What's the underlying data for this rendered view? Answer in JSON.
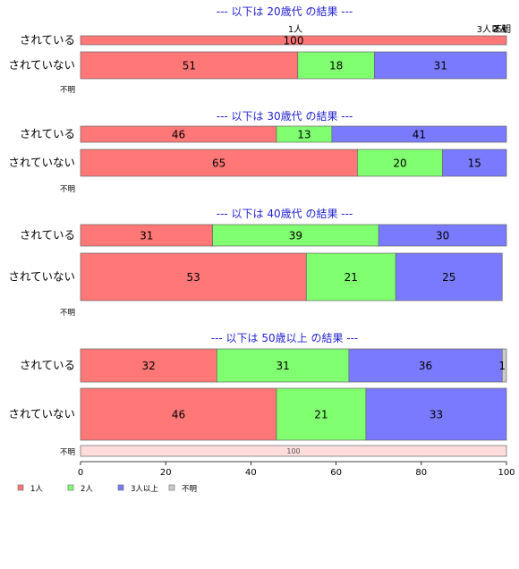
{
  "chart_data": {
    "type": "bar",
    "orientation": "horizontal",
    "stacked": true,
    "xlim": [
      0,
      100
    ],
    "xticks": [
      "0",
      "20",
      "40",
      "60",
      "80",
      "100"
    ],
    "legend_placement": "bottom-left",
    "colors": {
      "1人": "#ff7777",
      "2人": "#80ff70",
      "3人以上": "#7a7aff",
      "不明": "#cccccc",
      "不明_row": "#ffdddd"
    },
    "series_names": [
      "1人",
      "2人",
      "3人以上",
      "不明"
    ],
    "groups": [
      {
        "title": "--- 以下は 20歳代 の結果 ---",
        "rows": [
          {
            "label": "されている",
            "values": [
              100,
              0,
              0,
              0
            ],
            "labels": [
              "100",
              "",
              "",
              ""
            ]
          },
          {
            "label": "されていない",
            "values": [
              51,
              18,
              31,
              0
            ],
            "labels": [
              "51",
              "18",
              "31",
              ""
            ]
          },
          {
            "label": "不明",
            "values": [],
            "labels": []
          }
        ],
        "outside_labels": [
          "1人",
          "2人",
          "3人以上",
          "不明"
        ]
      },
      {
        "title": "--- 以下は 30歳代 の結果 ---",
        "rows": [
          {
            "label": "されている",
            "values": [
              46,
              13,
              41,
              0
            ],
            "labels": [
              "46",
              "13",
              "41",
              ""
            ]
          },
          {
            "label": "されていない",
            "values": [
              65,
              20,
              15,
              0
            ],
            "labels": [
              "65",
              "20",
              "15",
              ""
            ]
          },
          {
            "label": "不明",
            "values": [],
            "labels": []
          }
        ]
      },
      {
        "title": "--- 以下は 40歳代 の結果 ---",
        "rows": [
          {
            "label": "されている",
            "values": [
              31,
              39,
              30,
              0
            ],
            "labels": [
              "31",
              "39",
              "30",
              ""
            ]
          },
          {
            "label": "されていない",
            "values": [
              53,
              21,
              25,
              0
            ],
            "labels": [
              "53",
              "21",
              "25",
              ""
            ]
          },
          {
            "label": "不明",
            "values": [],
            "labels": []
          }
        ]
      },
      {
        "title": "--- 以下は 50歳以上 の結果 ---",
        "rows": [
          {
            "label": "されている",
            "values": [
              32,
              31,
              36,
              1
            ],
            "labels": [
              "32",
              "31",
              "36",
              "1"
            ]
          },
          {
            "label": "されていない",
            "values": [
              46,
              21,
              33,
              0
            ],
            "labels": [
              "46",
              "21",
              "33",
              ""
            ]
          },
          {
            "label": "不明",
            "values": [
              0,
              0,
              0,
              100
            ],
            "labels": [
              "",
              "",
              "",
              "100"
            ],
            "unknown_row": true
          }
        ]
      }
    ]
  }
}
